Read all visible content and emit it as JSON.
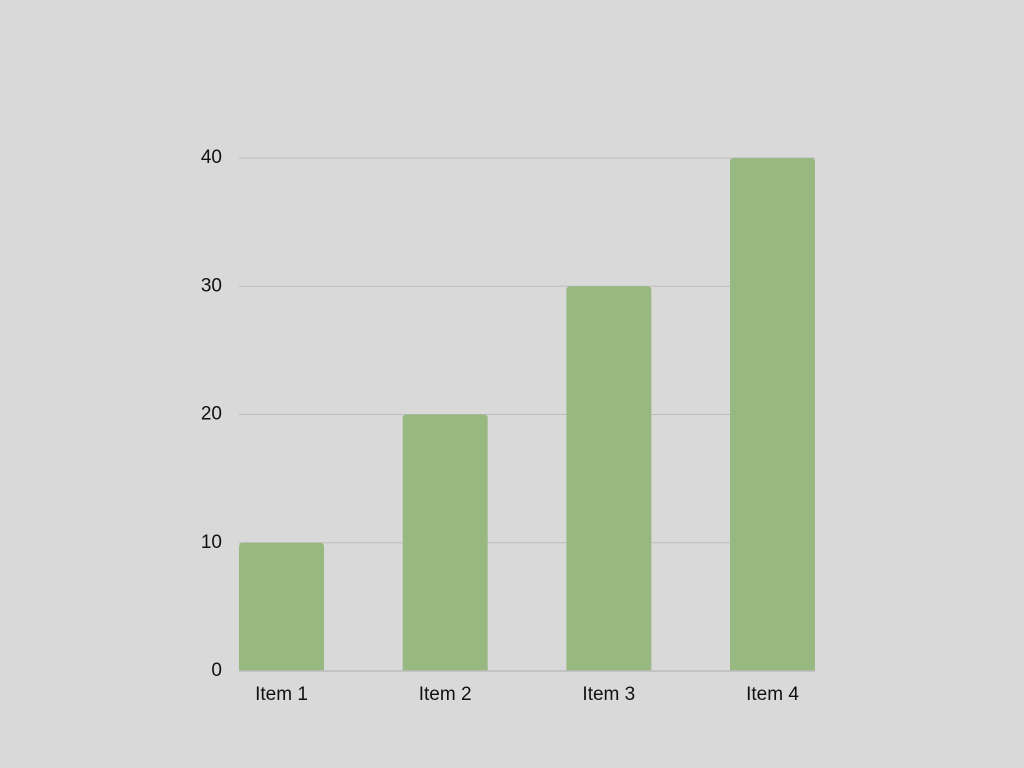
{
  "colors": {
    "background": "#d9d9d9",
    "bar": "#98b882",
    "gridline": "#bcbcbc",
    "text": "#111111"
  },
  "chart_data": {
    "type": "bar",
    "title": "",
    "xlabel": "",
    "ylabel": "",
    "categories": [
      "Item 1",
      "Item 2",
      "Item 3",
      "Item 4"
    ],
    "series": [
      {
        "values": [
          10,
          20,
          30,
          40
        ]
      }
    ],
    "ylim": [
      0,
      40
    ],
    "yticks": [
      "0",
      "10",
      "20",
      "30",
      "40"
    ],
    "grid": true,
    "legend": "none"
  }
}
